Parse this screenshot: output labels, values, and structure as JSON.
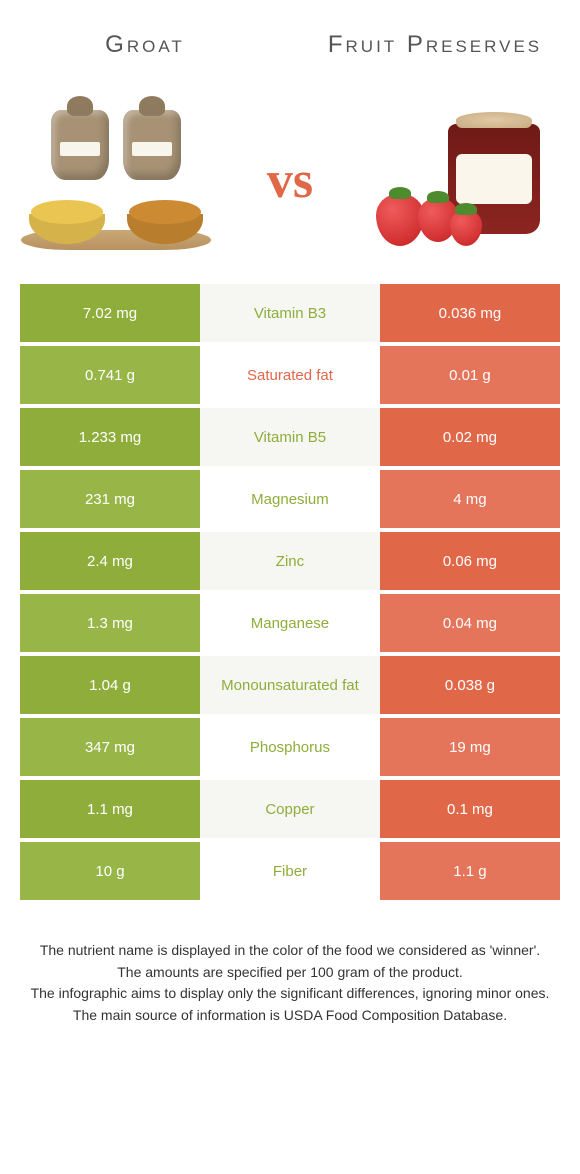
{
  "header": {
    "left": "Groat",
    "right": "Fruit Preserves"
  },
  "vs": "vs",
  "colors": {
    "left_bg": "#8fad3b",
    "left_bg_alt": "#98b647",
    "right_bg": "#e16749",
    "right_bg_alt": "#e4745a",
    "mid_bg": "#f6f7f2",
    "mid_bg_alt": "#ffffff",
    "nutrient_winner_left": "#8fad3b",
    "nutrient_winner_right": "#e16749"
  },
  "rows": [
    {
      "nutrient": "Vitamin B3",
      "left": "7.02 mg",
      "right": "0.036 mg",
      "winner": "left"
    },
    {
      "nutrient": "Saturated fat",
      "left": "0.741 g",
      "right": "0.01 g",
      "winner": "right"
    },
    {
      "nutrient": "Vitamin B5",
      "left": "1.233 mg",
      "right": "0.02 mg",
      "winner": "left"
    },
    {
      "nutrient": "Magnesium",
      "left": "231 mg",
      "right": "4 mg",
      "winner": "left"
    },
    {
      "nutrient": "Zinc",
      "left": "2.4 mg",
      "right": "0.06 mg",
      "winner": "left"
    },
    {
      "nutrient": "Manganese",
      "left": "1.3 mg",
      "right": "0.04 mg",
      "winner": "left"
    },
    {
      "nutrient": "Monounsaturated fat",
      "left": "1.04 g",
      "right": "0.038 g",
      "winner": "left"
    },
    {
      "nutrient": "Phosphorus",
      "left": "347 mg",
      "right": "19 mg",
      "winner": "left"
    },
    {
      "nutrient": "Copper",
      "left": "1.1 mg",
      "right": "0.1 mg",
      "winner": "left"
    },
    {
      "nutrient": "Fiber",
      "left": "10 g",
      "right": "1.1 g",
      "winner": "left"
    }
  ],
  "footer": [
    "The nutrient name is displayed in the color of the food we considered as 'winner'.",
    "The amounts are specified per 100 gram of the product.",
    "The infographic aims to display only the significant differences, ignoring minor ones.",
    "The main source of information is USDA Food Composition Database."
  ]
}
